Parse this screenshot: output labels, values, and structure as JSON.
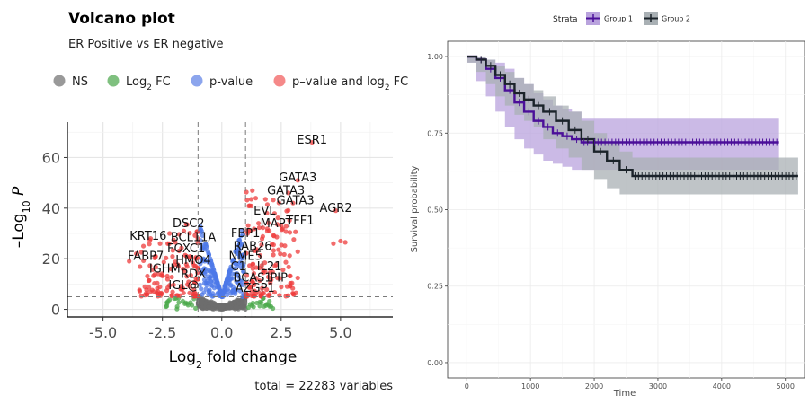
{
  "chart_data": [
    {
      "type": "scatter",
      "title": "Volcano plot",
      "subtitle": "ER Positive vs ER negative",
      "xlabel": "Log2 fold change",
      "ylabel": "-Log10 P",
      "xlim": [
        -6.5,
        7.2
      ],
      "ylim": [
        -3,
        74
      ],
      "x_ticks": [
        "-5.0",
        "-2.5",
        "0.0",
        "2.5",
        "5.0"
      ],
      "y_ticks": [
        "0",
        "20",
        "40",
        "60"
      ],
      "fc_cutoff": 1,
      "p_cutoff_log10": 5,
      "legend": {
        "position": "top",
        "items": [
          {
            "label": "NS",
            "color": "#7f7f7f"
          },
          {
            "label": "Log",
            "sub": "2",
            "label_after": " FC",
            "color": "#5fb05f"
          },
          {
            "label": "p-value",
            "color": "#6f8ee8"
          },
          {
            "label": "p–value and log",
            "sub": "2",
            "label_after": " FC",
            "color": "#f26b6b"
          }
        ]
      },
      "caption": "total = 22283 variables",
      "labeled_genes": [
        {
          "gene": "ESR1",
          "x": 3.8,
          "y": 65.5
        },
        {
          "gene": "GATA3",
          "x": 3.2,
          "y": 50.5
        },
        {
          "gene": "GATA3",
          "x": 2.7,
          "y": 45.5
        },
        {
          "gene": "GATA3",
          "x": 3.1,
          "y": 41.5
        },
        {
          "gene": "AGR2",
          "x": 4.8,
          "y": 38.5
        },
        {
          "gene": "EVL",
          "x": 1.8,
          "y": 37.5
        },
        {
          "gene": "TFF1",
          "x": 3.3,
          "y": 33.5
        },
        {
          "gene": "MAPT",
          "x": 2.3,
          "y": 32.5
        },
        {
          "gene": "DSC2",
          "x": -1.4,
          "y": 32.5
        },
        {
          "gene": "FBP1",
          "x": 1.0,
          "y": 28.5
        },
        {
          "gene": "KRT16",
          "x": -3.1,
          "y": 27.5
        },
        {
          "gene": "BCL11A",
          "x": -1.2,
          "y": 27.0
        },
        {
          "gene": "RAB26",
          "x": 1.3,
          "y": 23.5
        },
        {
          "gene": "FOXC1",
          "x": -1.5,
          "y": 22.5
        },
        {
          "gene": "NME5",
          "x": 1.0,
          "y": 19.5
        },
        {
          "gene": "FABP7",
          "x": -3.2,
          "y": 19.5
        },
        {
          "gene": "HMO4",
          "x": -1.2,
          "y": 18.0
        },
        {
          "gene": "IGHM",
          "x": -2.4,
          "y": 14.5
        },
        {
          "gene": "C1",
          "x": 0.7,
          "y": 15.5
        },
        {
          "gene": "IL21",
          "x": 2.0,
          "y": 15.5
        },
        {
          "gene": "RDX",
          "x": -1.2,
          "y": 12.5
        },
        {
          "gene": "BCAS1",
          "x": 1.3,
          "y": 11.0
        },
        {
          "gene": "PIP",
          "x": 2.4,
          "y": 11.0
        },
        {
          "gene": "IGL@",
          "x": -1.6,
          "y": 8.0
        },
        {
          "gene": "AZGP1",
          "x": 1.4,
          "y": 7.0
        }
      ],
      "highlight_points": [
        {
          "x": 3.8,
          "y": 66
        },
        {
          "x": 3.2,
          "y": 51
        },
        {
          "x": 2.8,
          "y": 46
        },
        {
          "x": 3.0,
          "y": 42
        },
        {
          "x": 4.8,
          "y": 39
        },
        {
          "x": 4.7,
          "y": 26
        },
        {
          "x": 5.0,
          "y": 27
        },
        {
          "x": 5.2,
          "y": 26.5
        },
        {
          "x": 1.9,
          "y": 38
        },
        {
          "x": 2.5,
          "y": 33
        },
        {
          "x": 2.0,
          "y": 31
        },
        {
          "x": 2.2,
          "y": 29
        },
        {
          "x": -3.0,
          "y": 28
        },
        {
          "x": -3.3,
          "y": 25
        },
        {
          "x": -2.6,
          "y": 26
        },
        {
          "x": -2.2,
          "y": 30
        },
        {
          "x": -1.6,
          "y": 31
        },
        {
          "x": -3.6,
          "y": 22
        },
        {
          "x": -2.8,
          "y": 21
        },
        {
          "x": -3.9,
          "y": 19
        }
      ]
    },
    {
      "type": "line",
      "subtype": "kaplan-meier",
      "xlabel": "Time",
      "ylabel": "Survival probability",
      "xlim": [
        -300,
        5300
      ],
      "ylim": [
        -0.05,
        1.05
      ],
      "x_ticks": [
        0,
        1000,
        2000,
        3000,
        4000,
        5000
      ],
      "y_ticks": [
        "0.00",
        "0.25",
        "0.50",
        "0.75",
        "1.00"
      ],
      "legend": {
        "title": "Strata",
        "position": "top"
      },
      "series": [
        {
          "name": "Group 1",
          "color": "#4b0f99",
          "fill": "#b9a3dd",
          "x": [
            0,
            150,
            300,
            450,
            600,
            750,
            900,
            1050,
            1200,
            1350,
            1500,
            1650,
            1800,
            4900
          ],
          "y": [
            1.0,
            0.99,
            0.96,
            0.93,
            0.89,
            0.85,
            0.82,
            0.79,
            0.77,
            0.75,
            0.74,
            0.73,
            0.72,
            0.72
          ],
          "lower": [
            1.0,
            0.98,
            0.92,
            0.87,
            0.82,
            0.77,
            0.73,
            0.7,
            0.68,
            0.66,
            0.65,
            0.64,
            0.63,
            0.63
          ],
          "upper": [
            1.0,
            1.0,
            0.99,
            0.98,
            0.96,
            0.93,
            0.91,
            0.88,
            0.86,
            0.84,
            0.83,
            0.82,
            0.8,
            0.8
          ]
        },
        {
          "name": "Group 2",
          "color": "#1b232a",
          "fill": "#a9b0b4",
          "x": [
            0,
            150,
            300,
            450,
            600,
            750,
            900,
            1050,
            1200,
            1400,
            1600,
            1800,
            2000,
            2200,
            2400,
            2600,
            5200
          ],
          "y": [
            1.0,
            0.99,
            0.97,
            0.94,
            0.91,
            0.88,
            0.86,
            0.84,
            0.82,
            0.79,
            0.76,
            0.73,
            0.69,
            0.66,
            0.63,
            0.61,
            0.61
          ],
          "lower": [
            1.0,
            0.98,
            0.95,
            0.91,
            0.87,
            0.84,
            0.81,
            0.79,
            0.77,
            0.73,
            0.7,
            0.67,
            0.63,
            0.6,
            0.57,
            0.55,
            0.55
          ],
          "upper": [
            1.0,
            1.0,
            0.99,
            0.97,
            0.95,
            0.93,
            0.91,
            0.89,
            0.87,
            0.84,
            0.82,
            0.79,
            0.75,
            0.72,
            0.69,
            0.67,
            0.67
          ]
        }
      ]
    }
  ]
}
